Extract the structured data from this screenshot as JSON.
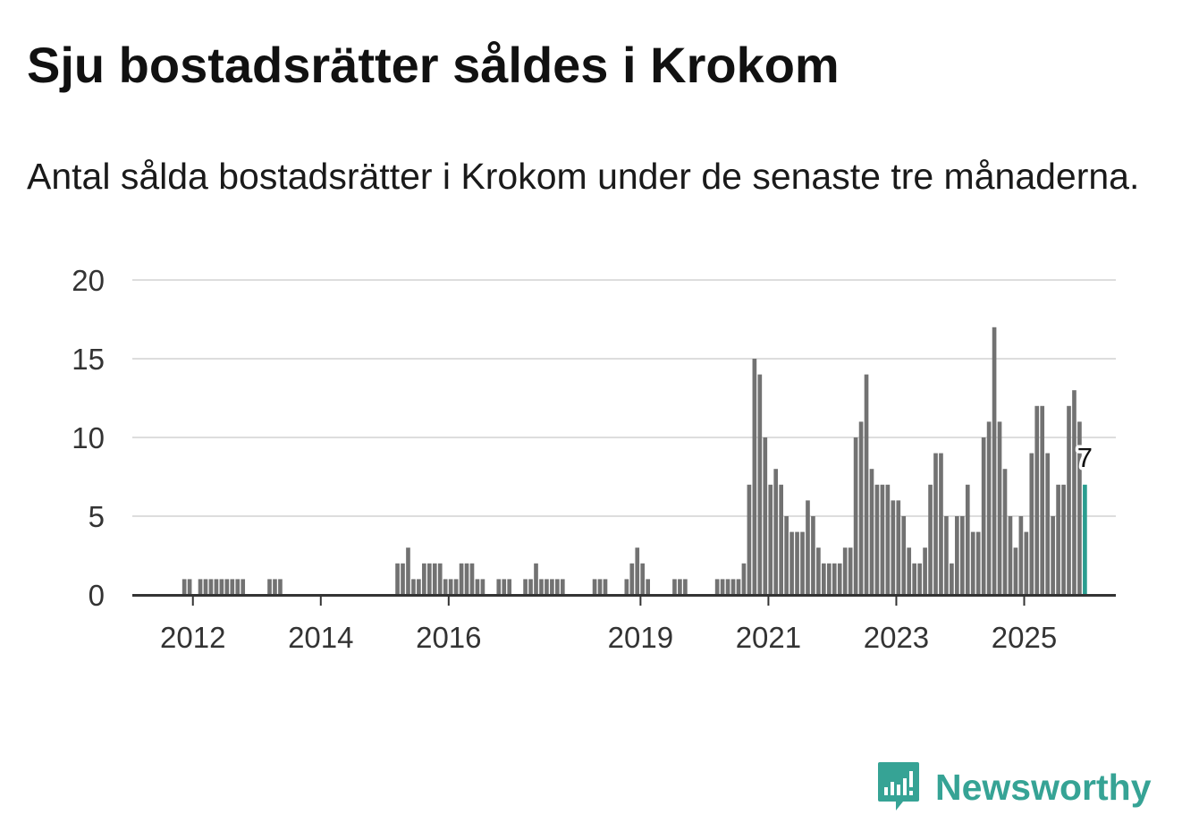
{
  "title": "Sju bostadsrätter såldes i Krokom",
  "subtitle": "Antal sålda bostadsrätter i Krokom under de senaste tre månaderna.",
  "brand": {
    "name": "Newsworthy",
    "logo_icon": "newsworthy-logo-icon",
    "color": "#36a395"
  },
  "chart_data": {
    "type": "bar",
    "title": "Sju bostadsrätter såldes i Krokom",
    "subtitle": "Antal sålda bostadsrätter i Krokom under de senaste tre månaderna.",
    "xlabel": "",
    "ylabel": "",
    "ylim": [
      0,
      20
    ],
    "yticks": [
      0,
      5,
      10,
      15,
      20
    ],
    "grid": true,
    "x_start": "2011-01",
    "x_end": "2026-07",
    "x_ticks": [
      {
        "label": "2012",
        "year": 2012
      },
      {
        "label": "2014",
        "year": 2014
      },
      {
        "label": "2016",
        "year": 2016
      },
      {
        "label": "2019",
        "year": 2019
      },
      {
        "label": "2021",
        "year": 2021
      },
      {
        "label": "2023",
        "year": 2023
      },
      {
        "label": "2025",
        "year": 2025
      }
    ],
    "bar_color": "#727272",
    "highlight_color": "#2a9d8f",
    "highlight_label": "7",
    "series": [
      {
        "month": "2011-11",
        "value": 1
      },
      {
        "month": "2011-12",
        "value": 1
      },
      {
        "month": "2012-02",
        "value": 1
      },
      {
        "month": "2012-03",
        "value": 1
      },
      {
        "month": "2012-04",
        "value": 1
      },
      {
        "month": "2012-05",
        "value": 1
      },
      {
        "month": "2012-06",
        "value": 1
      },
      {
        "month": "2012-07",
        "value": 1
      },
      {
        "month": "2012-08",
        "value": 1
      },
      {
        "month": "2012-09",
        "value": 1
      },
      {
        "month": "2012-10",
        "value": 1
      },
      {
        "month": "2013-03",
        "value": 1
      },
      {
        "month": "2013-04",
        "value": 1
      },
      {
        "month": "2013-05",
        "value": 1
      },
      {
        "month": "2015-03",
        "value": 2
      },
      {
        "month": "2015-04",
        "value": 2
      },
      {
        "month": "2015-05",
        "value": 3
      },
      {
        "month": "2015-06",
        "value": 1
      },
      {
        "month": "2015-07",
        "value": 1
      },
      {
        "month": "2015-08",
        "value": 2
      },
      {
        "month": "2015-09",
        "value": 2
      },
      {
        "month": "2015-10",
        "value": 2
      },
      {
        "month": "2015-11",
        "value": 2
      },
      {
        "month": "2015-12",
        "value": 1
      },
      {
        "month": "2016-01",
        "value": 1
      },
      {
        "month": "2016-02",
        "value": 1
      },
      {
        "month": "2016-03",
        "value": 2
      },
      {
        "month": "2016-04",
        "value": 2
      },
      {
        "month": "2016-05",
        "value": 2
      },
      {
        "month": "2016-06",
        "value": 1
      },
      {
        "month": "2016-07",
        "value": 1
      },
      {
        "month": "2016-10",
        "value": 1
      },
      {
        "month": "2016-11",
        "value": 1
      },
      {
        "month": "2016-12",
        "value": 1
      },
      {
        "month": "2017-03",
        "value": 1
      },
      {
        "month": "2017-04",
        "value": 1
      },
      {
        "month": "2017-05",
        "value": 2
      },
      {
        "month": "2017-06",
        "value": 1
      },
      {
        "month": "2017-07",
        "value": 1
      },
      {
        "month": "2017-08",
        "value": 1
      },
      {
        "month": "2017-09",
        "value": 1
      },
      {
        "month": "2017-10",
        "value": 1
      },
      {
        "month": "2018-04",
        "value": 1
      },
      {
        "month": "2018-05",
        "value": 1
      },
      {
        "month": "2018-06",
        "value": 1
      },
      {
        "month": "2018-10",
        "value": 1
      },
      {
        "month": "2018-11",
        "value": 2
      },
      {
        "month": "2018-12",
        "value": 3
      },
      {
        "month": "2019-01",
        "value": 2
      },
      {
        "month": "2019-02",
        "value": 1
      },
      {
        "month": "2019-07",
        "value": 1
      },
      {
        "month": "2019-08",
        "value": 1
      },
      {
        "month": "2019-09",
        "value": 1
      },
      {
        "month": "2020-03",
        "value": 1
      },
      {
        "month": "2020-04",
        "value": 1
      },
      {
        "month": "2020-05",
        "value": 1
      },
      {
        "month": "2020-06",
        "value": 1
      },
      {
        "month": "2020-07",
        "value": 1
      },
      {
        "month": "2020-08",
        "value": 2
      },
      {
        "month": "2020-09",
        "value": 7
      },
      {
        "month": "2020-10",
        "value": 15
      },
      {
        "month": "2020-11",
        "value": 14
      },
      {
        "month": "2020-12",
        "value": 10
      },
      {
        "month": "2021-01",
        "value": 7
      },
      {
        "month": "2021-02",
        "value": 8
      },
      {
        "month": "2021-03",
        "value": 7
      },
      {
        "month": "2021-04",
        "value": 5
      },
      {
        "month": "2021-05",
        "value": 4
      },
      {
        "month": "2021-06",
        "value": 4
      },
      {
        "month": "2021-07",
        "value": 4
      },
      {
        "month": "2021-08",
        "value": 6
      },
      {
        "month": "2021-09",
        "value": 5
      },
      {
        "month": "2021-10",
        "value": 3
      },
      {
        "month": "2021-11",
        "value": 2
      },
      {
        "month": "2021-12",
        "value": 2
      },
      {
        "month": "2022-01",
        "value": 2
      },
      {
        "month": "2022-02",
        "value": 2
      },
      {
        "month": "2022-03",
        "value": 3
      },
      {
        "month": "2022-04",
        "value": 3
      },
      {
        "month": "2022-05",
        "value": 10
      },
      {
        "month": "2022-06",
        "value": 11
      },
      {
        "month": "2022-07",
        "value": 14
      },
      {
        "month": "2022-08",
        "value": 8
      },
      {
        "month": "2022-09",
        "value": 7
      },
      {
        "month": "2022-10",
        "value": 7
      },
      {
        "month": "2022-11",
        "value": 7
      },
      {
        "month": "2022-12",
        "value": 6
      },
      {
        "month": "2023-01",
        "value": 6
      },
      {
        "month": "2023-02",
        "value": 5
      },
      {
        "month": "2023-03",
        "value": 3
      },
      {
        "month": "2023-04",
        "value": 2
      },
      {
        "month": "2023-05",
        "value": 2
      },
      {
        "month": "2023-06",
        "value": 3
      },
      {
        "month": "2023-07",
        "value": 7
      },
      {
        "month": "2023-08",
        "value": 9
      },
      {
        "month": "2023-09",
        "value": 9
      },
      {
        "month": "2023-10",
        "value": 5
      },
      {
        "month": "2023-11",
        "value": 2
      },
      {
        "month": "2023-12",
        "value": 5
      },
      {
        "month": "2024-01",
        "value": 5
      },
      {
        "month": "2024-02",
        "value": 7
      },
      {
        "month": "2024-03",
        "value": 4
      },
      {
        "month": "2024-04",
        "value": 4
      },
      {
        "month": "2024-05",
        "value": 10
      },
      {
        "month": "2024-06",
        "value": 11
      },
      {
        "month": "2024-07",
        "value": 17
      },
      {
        "month": "2024-08",
        "value": 11
      },
      {
        "month": "2024-09",
        "value": 8
      },
      {
        "month": "2024-10",
        "value": 5
      },
      {
        "month": "2024-11",
        "value": 3
      },
      {
        "month": "2024-12",
        "value": 5
      },
      {
        "month": "2025-01",
        "value": 4
      },
      {
        "month": "2025-02",
        "value": 9
      },
      {
        "month": "2025-03",
        "value": 12
      },
      {
        "month": "2025-04",
        "value": 12
      },
      {
        "month": "2025-05",
        "value": 9
      },
      {
        "month": "2025-06",
        "value": 5
      },
      {
        "month": "2025-07",
        "value": 7
      },
      {
        "month": "2025-08",
        "value": 7
      },
      {
        "month": "2025-09",
        "value": 12
      },
      {
        "month": "2025-10",
        "value": 13
      },
      {
        "month": "2025-11",
        "value": 11
      },
      {
        "month": "2025-12",
        "value": 7
      }
    ]
  }
}
